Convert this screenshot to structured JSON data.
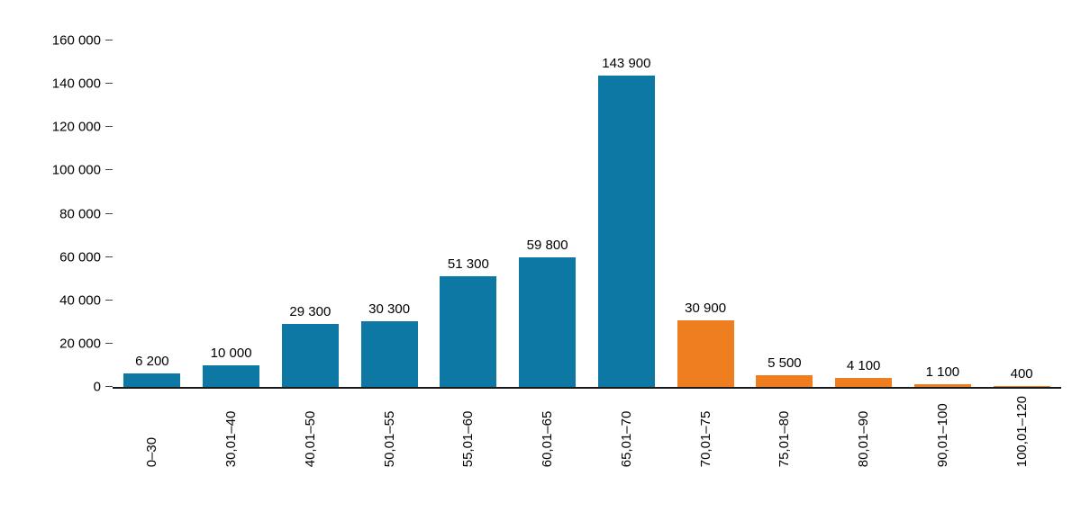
{
  "chart_data": {
    "type": "bar",
    "title": "",
    "categories": [
      "0–30",
      "30,01–40",
      "40,01–50",
      "50,01–55",
      "55,01–60",
      "60,01–65",
      "65,01–70",
      "70,01–75",
      "75,01–80",
      "80,01–90",
      "90,01–100",
      "100,01–120"
    ],
    "values": [
      6200,
      10000,
      29300,
      30300,
      51300,
      59800,
      143900,
      30900,
      5500,
      4100,
      1100,
      400
    ],
    "value_labels": [
      "6 200",
      "10 000",
      "29 300",
      "30 300",
      "51 300",
      "59 800",
      "143 900",
      "30 900",
      "5 500",
      "4 100",
      "1 100",
      "400"
    ],
    "bar_colors": [
      "#0e78a5",
      "#0e78a5",
      "#0e78a5",
      "#0e78a5",
      "#0e78a5",
      "#0e78a5",
      "#0e78a5",
      "#ef7e21",
      "#ef7e21",
      "#ef7e21",
      "#ef7e21",
      "#ef7e21"
    ],
    "colors": {
      "blue": "#0e78a5",
      "orange": "#ef7e21",
      "axis": "#1a1a1a"
    },
    "xlabel": "",
    "ylabel": "",
    "ylim": [
      0,
      160000
    ],
    "yticks": [
      0,
      20000,
      40000,
      60000,
      80000,
      100000,
      120000,
      140000,
      160000
    ],
    "ytick_labels": [
      "0",
      "20 000",
      "40 000",
      "60 000",
      "80 000",
      "100 000",
      "120 000",
      "140 000",
      "160 000"
    ],
    "grid": false,
    "legend": "none",
    "x_label_rotation": 90
  }
}
